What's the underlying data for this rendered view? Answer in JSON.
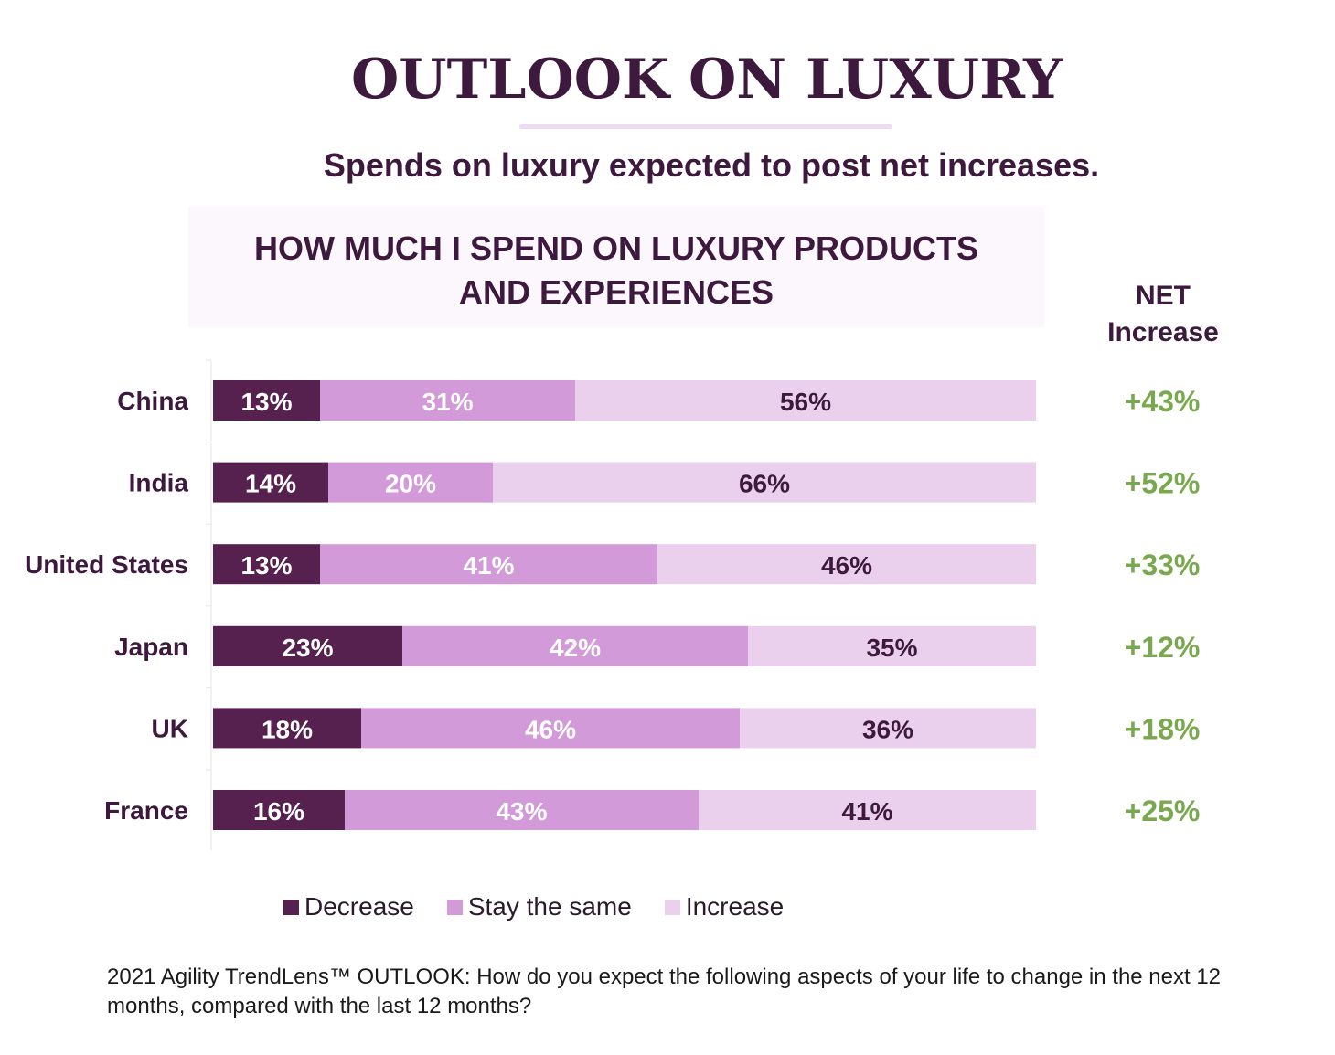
{
  "title": "OUTLOOK ON LUXURY",
  "subtitle": "Spends on luxury expected to post net increases.",
  "net_header": [
    "NET",
    "Increase"
  ],
  "footnote": {
    "brand": "2021 Agility TrendLens™",
    "text": " OUTLOOK: How do you expect the following aspects of your life to change in the next 12 months, compared with the last 12 months?"
  },
  "colors": {
    "decrease": "#56214f",
    "same": "#d29ad8",
    "increase": "#ead0ec",
    "net": "#7aa84f",
    "text_dark": "#3d1a3d"
  },
  "chart_data": {
    "type": "bar",
    "orientation": "horizontal",
    "stacked": true,
    "title": "HOW MUCH I SPEND ON LUXURY PRODUCTS AND EXPERIENCES",
    "title_lines": [
      "HOW MUCH I SPEND ON LUXURY PRODUCTS",
      "AND EXPERIENCES"
    ],
    "categories": [
      "China",
      "India",
      "United States",
      "Japan",
      "UK",
      "France"
    ],
    "series": [
      {
        "name": "Decrease",
        "values": [
          13,
          14,
          13,
          23,
          18,
          16
        ]
      },
      {
        "name": "Stay the same",
        "values": [
          31,
          20,
          41,
          42,
          46,
          43
        ]
      },
      {
        "name": "Increase",
        "values": [
          56,
          66,
          46,
          35,
          36,
          41
        ]
      }
    ],
    "data_labels": [
      [
        "13%",
        "31%",
        "56%"
      ],
      [
        "14%",
        "20%",
        "66%"
      ],
      [
        "13%",
        "41%",
        "46%"
      ],
      [
        "23%",
        "42%",
        "35%"
      ],
      [
        "18%",
        "46%",
        "36%"
      ],
      [
        "16%",
        "43%",
        "41%"
      ]
    ],
    "net_increase": [
      43,
      52,
      33,
      12,
      18,
      25
    ],
    "net_increase_labels": [
      "+43%",
      "+52%",
      "+33%",
      "+12%",
      "+18%",
      "+25%"
    ],
    "xlim": [
      0,
      100
    ],
    "legend": "bottom"
  }
}
